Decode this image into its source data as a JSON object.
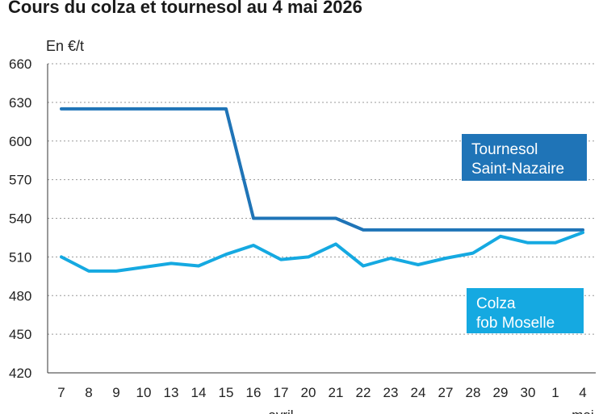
{
  "title": "Cours du colza et tournesol au 4 mai 2026",
  "chart_data": {
    "type": "line",
    "title": "Cours du colza et tournesol au 4 mai 2026",
    "ylabel": "En €/t",
    "ylim": [
      420,
      660
    ],
    "yticks": [
      420,
      450,
      480,
      510,
      540,
      570,
      600,
      630,
      660
    ],
    "grid": "horizontal dotted",
    "categories": [
      "7",
      "8",
      "9",
      "10",
      "13",
      "14",
      "15",
      "16",
      "17",
      "20",
      "21",
      "22",
      "23",
      "24",
      "27",
      "28",
      "29",
      "30",
      "1",
      "4"
    ],
    "month_labels": [
      {
        "label": "avril",
        "at": "17"
      },
      {
        "label": "mai",
        "at": "4"
      }
    ],
    "series": [
      {
        "name": "Tournesol Saint-Nazaire",
        "label_lines": [
          "Tournesol",
          "Saint-Nazaire"
        ],
        "color": "#1f74b7",
        "values": [
          625,
          625,
          625,
          625,
          625,
          625,
          625,
          540,
          540,
          540,
          540,
          531,
          531,
          531,
          531,
          531,
          531,
          531,
          531,
          531
        ]
      },
      {
        "name": "Colza fob Moselle",
        "label_lines": [
          "Colza",
          "fob Moselle"
        ],
        "color": "#15a9e1",
        "values": [
          510,
          499,
          499,
          502,
          505,
          503,
          512,
          519,
          508,
          510,
          520,
          503,
          509,
          504,
          509,
          513,
          526,
          521,
          521,
          529
        ]
      }
    ]
  }
}
